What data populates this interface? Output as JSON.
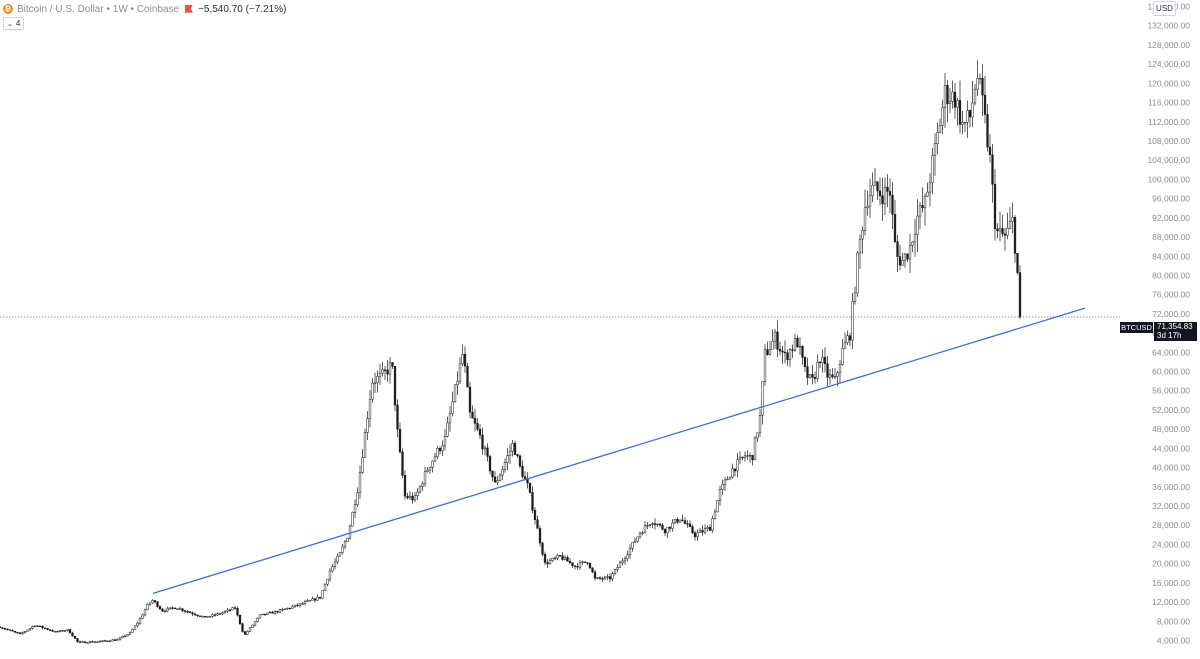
{
  "header": {
    "symbol_text": "Bitcoin / U.S. Dollar • 1W • Coinbase",
    "coin_glyph": "₿",
    "change_text": "−5,540.70 (−7.21%)"
  },
  "indicator_toggle": {
    "count": "4"
  },
  "currency_label": "USD",
  "price_badge": {
    "symbol": "BTCUSD",
    "price": "71,354.83",
    "countdown": "3d 17h"
  },
  "colors": {
    "up": "#1a1a1a",
    "down": "#1a1a1a",
    "up_fill": "#ffffff",
    "trendline": "#3a6fd8",
    "axis_text": "#8a8d96",
    "badge_bg": "#131722"
  },
  "chart_data": {
    "type": "candlestick",
    "interval": "1W",
    "scale": "linear",
    "y_range": [
      2000,
      138000
    ],
    "y_ticks": [
      "136,000.00",
      "132,000.00",
      "128,000.00",
      "124,000.00",
      "120,000.00",
      "116,000.00",
      "112,000.00",
      "108,000.00",
      "104,000.00",
      "100,000.00",
      "96,000.00",
      "92,000.00",
      "88,000.00",
      "84,000.00",
      "80,000.00",
      "76,000.00",
      "72,000.00",
      "68,000.00",
      "64,000.00",
      "60,000.00",
      "56,000.00",
      "52,000.00",
      "48,000.00",
      "44,000.00",
      "40,000.00",
      "36,000.00",
      "32,000.00",
      "28,000.00",
      "24,000.00",
      "20,000.00",
      "16,000.00",
      "12,000.00",
      "8,000.00",
      "4,000.00"
    ],
    "close_price_line": 71354.83,
    "trendline": {
      "start": [
        153,
        13800
      ],
      "end": [
        1085,
        73200
      ]
    },
    "anchors": [
      [
        0,
        6800
      ],
      [
        20,
        5300
      ],
      [
        35,
        7200
      ],
      [
        55,
        5800
      ],
      [
        68,
        6200
      ],
      [
        78,
        3600
      ],
      [
        100,
        3800
      ],
      [
        118,
        4200
      ],
      [
        130,
        5600
      ],
      [
        138,
        7800
      ],
      [
        148,
        11500
      ],
      [
        153,
        12400
      ],
      [
        162,
        10200
      ],
      [
        176,
        10900
      ],
      [
        190,
        9800
      ],
      [
        205,
        8800
      ],
      [
        220,
        9600
      ],
      [
        235,
        10800
      ],
      [
        244,
        5000
      ],
      [
        260,
        9200
      ],
      [
        280,
        10200
      ],
      [
        300,
        11500
      ],
      [
        320,
        13000
      ],
      [
        330,
        18500
      ],
      [
        340,
        22000
      ],
      [
        348,
        26000
      ],
      [
        358,
        36000
      ],
      [
        372,
        58000
      ],
      [
        382,
        59000
      ],
      [
        392,
        61500
      ],
      [
        398,
        46000
      ],
      [
        405,
        34000
      ],
      [
        415,
        33500
      ],
      [
        428,
        40000
      ],
      [
        445,
        46000
      ],
      [
        457,
        58000
      ],
      [
        463,
        64000
      ],
      [
        470,
        51000
      ],
      [
        480,
        46500
      ],
      [
        495,
        36500
      ],
      [
        505,
        41000
      ],
      [
        513,
        45000
      ],
      [
        520,
        40000
      ],
      [
        528,
        36000
      ],
      [
        536,
        28500
      ],
      [
        545,
        20000
      ],
      [
        560,
        21500
      ],
      [
        575,
        19500
      ],
      [
        588,
        20500
      ],
      [
        595,
        16800
      ],
      [
        610,
        17000
      ],
      [
        625,
        21500
      ],
      [
        640,
        26500
      ],
      [
        652,
        29000
      ],
      [
        665,
        27000
      ],
      [
        680,
        29500
      ],
      [
        695,
        26000
      ],
      [
        710,
        27500
      ],
      [
        720,
        35000
      ],
      [
        732,
        39500
      ],
      [
        745,
        42500
      ],
      [
        752,
        42000
      ],
      [
        760,
        50500
      ],
      [
        765,
        63500
      ],
      [
        775,
        67000
      ],
      [
        785,
        63000
      ],
      [
        797,
        66500
      ],
      [
        805,
        60000
      ],
      [
        812,
        57500
      ],
      [
        820,
        63000
      ],
      [
        828,
        59000
      ],
      [
        835,
        58000
      ],
      [
        842,
        64000
      ],
      [
        850,
        68000
      ],
      [
        858,
        84000
      ],
      [
        866,
        96000
      ],
      [
        873,
        98000
      ],
      [
        882,
        97000
      ],
      [
        890,
        97500
      ],
      [
        896,
        84000
      ],
      [
        903,
        83000
      ],
      [
        910,
        86000
      ],
      [
        917,
        92000
      ],
      [
        925,
        95000
      ],
      [
        935,
        106000
      ],
      [
        945,
        118000
      ],
      [
        955,
        117000
      ],
      [
        963,
        111000
      ],
      [
        970,
        113000
      ],
      [
        977,
        122000
      ],
      [
        983,
        115000
      ],
      [
        990,
        104000
      ],
      [
        996,
        89000
      ],
      [
        1005,
        88000
      ],
      [
        1013,
        91500
      ],
      [
        1018,
        79000
      ],
      [
        1020,
        71354.83
      ]
    ]
  }
}
